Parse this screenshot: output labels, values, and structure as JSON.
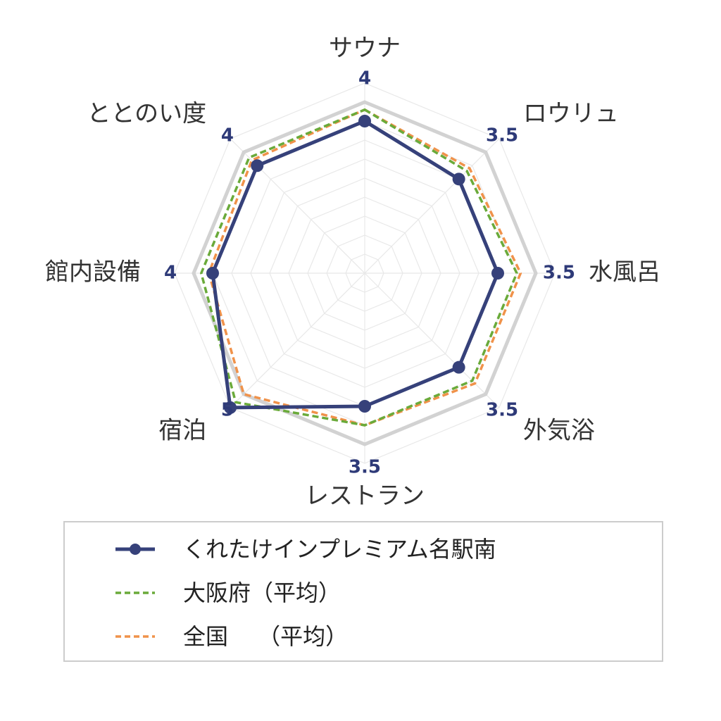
{
  "chart_data": {
    "type": "radar",
    "axes": [
      "サウナ",
      "ロウリュ",
      "水風呂",
      "外気浴",
      "レストラン",
      "宿泊",
      "館内設備",
      "ととのい度"
    ],
    "rmax": 5,
    "series": [
      {
        "name": "くれたけインプレミアム名駅南",
        "values": [
          4,
          3.5,
          3.5,
          3.5,
          3.5,
          5,
          4,
          4
        ],
        "color": "#36417a",
        "style": "solid",
        "marker": "circle",
        "show_labels": true
      },
      {
        "name": "大阪府（平均）",
        "values": [
          4.3,
          3.8,
          4.0,
          4.0,
          4.0,
          4.8,
          4.3,
          4.3
        ],
        "color": "#6aaa3a",
        "style": "dashed"
      },
      {
        "name": "全国　（平均）",
        "values": [
          4.3,
          3.9,
          4.1,
          4.1,
          4.0,
          4.5,
          4.1,
          4.2
        ],
        "color": "#f0924a",
        "style": "dashed"
      }
    ],
    "value_labels": [
      "4",
      "3.5",
      "3.5",
      "3.5",
      "3.5",
      "5",
      "4",
      "4"
    ],
    "grid": true,
    "highlight_ring": 4.5
  },
  "legend": {
    "items": [
      {
        "label": "くれたけインプレミアム名駅南"
      },
      {
        "label": "大阪府（平均）"
      },
      {
        "label": "全国　 （平均）"
      }
    ]
  }
}
